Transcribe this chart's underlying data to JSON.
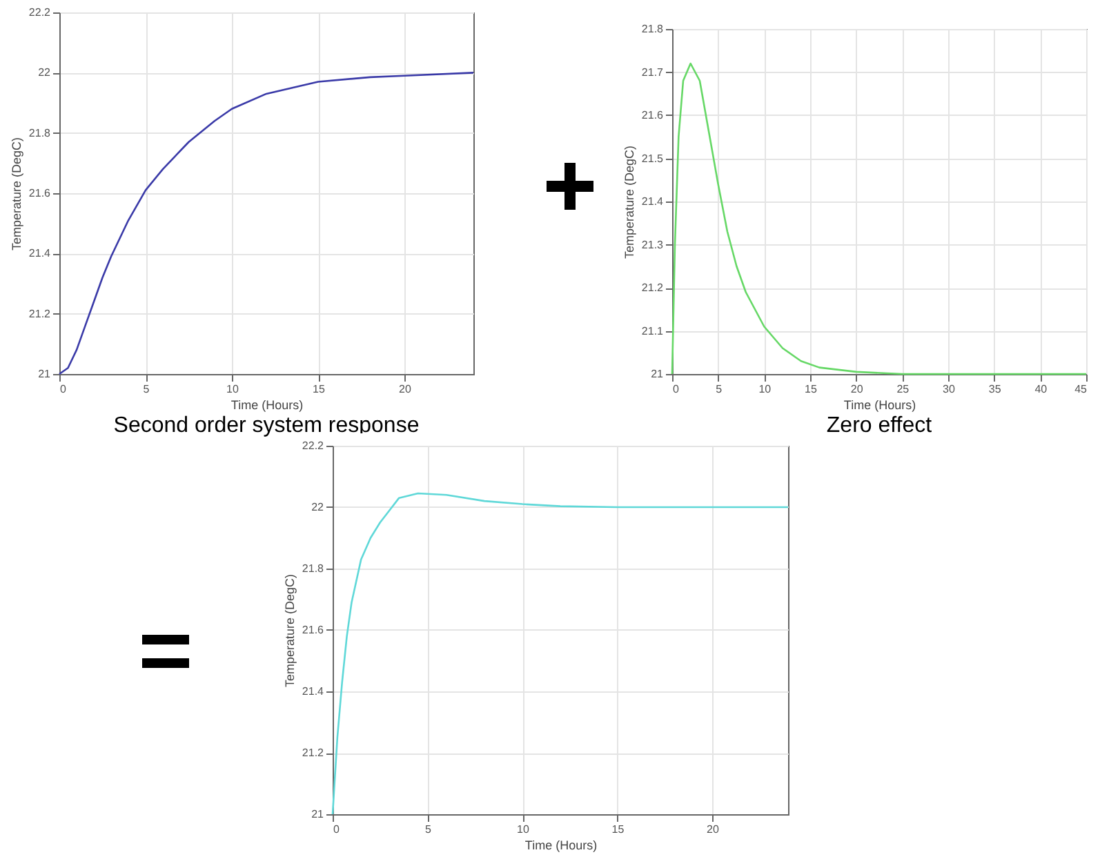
{
  "chart_data": [
    {
      "type": "line",
      "title": "Second order system response",
      "xlabel": "Time (Hours)",
      "ylabel": "Temperature (DegC)",
      "xlim": [
        0,
        24
      ],
      "xticks": [
        0,
        5,
        10,
        15,
        20
      ],
      "ylim": [
        21,
        22.2
      ],
      "yticks": [
        21,
        21.2,
        21.4,
        21.6,
        21.8,
        22,
        22.2
      ],
      "grid": true,
      "series": [
        {
          "color": "#3a3aa8",
          "x": [
            0,
            0.5,
            1,
            1.5,
            2,
            2.5,
            3,
            4,
            5,
            6,
            7.5,
            9,
            10,
            12,
            15,
            18,
            20,
            24
          ],
          "values": [
            21,
            21.02,
            21.08,
            21.16,
            21.24,
            21.32,
            21.39,
            21.51,
            21.61,
            21.68,
            21.77,
            21.84,
            21.88,
            21.93,
            21.97,
            21.985,
            21.99,
            22.0
          ]
        }
      ]
    },
    {
      "type": "line",
      "title": "Zero effect",
      "xlabel": "Time (Hours)",
      "ylabel": "Temperature (DegC)",
      "xlim": [
        0,
        45
      ],
      "xticks": [
        0,
        5,
        10,
        15,
        20,
        25,
        30,
        35,
        40,
        45
      ],
      "ylim": [
        21,
        21.8
      ],
      "yticks": [
        21,
        21.1,
        21.2,
        21.3,
        21.4,
        21.5,
        21.6,
        21.7,
        21.8
      ],
      "grid": true,
      "series": [
        {
          "color": "#66d866",
          "x": [
            0,
            0.3,
            0.7,
            1.2,
            2,
            3,
            4,
            5,
            6,
            7,
            8,
            10,
            12,
            14,
            16,
            20,
            25,
            45
          ],
          "values": [
            21,
            21.3,
            21.55,
            21.68,
            21.72,
            21.68,
            21.56,
            21.44,
            21.33,
            21.25,
            21.19,
            21.11,
            21.06,
            21.03,
            21.015,
            21.005,
            21.0,
            21.0
          ]
        }
      ]
    },
    {
      "type": "line",
      "xlabel": "Time (Hours)",
      "ylabel": "Temperature (DegC)",
      "xlim": [
        0,
        24
      ],
      "xticks": [
        0,
        5,
        10,
        15,
        20
      ],
      "ylim": [
        21,
        22.2
      ],
      "yticks": [
        21,
        21.2,
        21.4,
        21.6,
        21.8,
        22,
        22.2
      ],
      "grid": true,
      "series": [
        {
          "color": "#5fd8d8",
          "x": [
            0,
            0.25,
            0.5,
            0.75,
            1,
            1.5,
            2,
            2.5,
            3,
            3.5,
            4.5,
            6,
            8,
            10,
            12,
            15,
            24
          ],
          "values": [
            21,
            21.25,
            21.43,
            21.58,
            21.69,
            21.83,
            21.9,
            21.95,
            21.99,
            22.03,
            22.045,
            22.04,
            22.02,
            22.01,
            22.003,
            22.0,
            22.0
          ]
        }
      ]
    }
  ]
}
